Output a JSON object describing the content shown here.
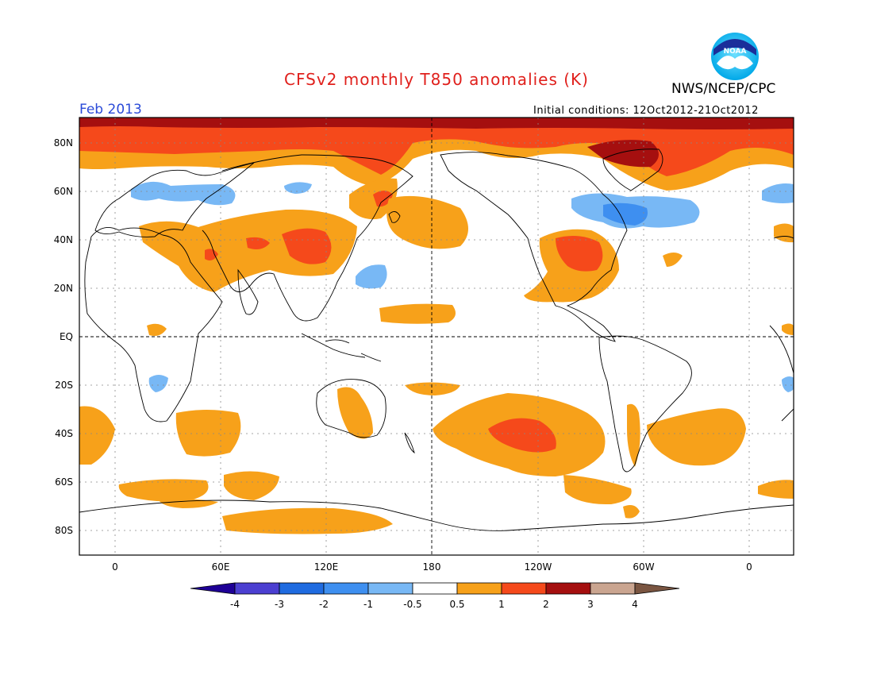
{
  "title": "CFSv2 monthly T850 anomalies (K)",
  "organization": "NWS/NCEP/CPC",
  "month_label": "Feb 2013",
  "initial_conditions": "Initial conditions: 12Oct2012-21Oct2012",
  "logo_text": "NOAA",
  "y_ticks": [
    "80N",
    "60N",
    "40N",
    "20N",
    "EQ",
    "20S",
    "40S",
    "60S",
    "80S"
  ],
  "x_ticks": [
    "0",
    "60E",
    "120E",
    "180",
    "120W",
    "60W",
    "0"
  ],
  "colorbar": {
    "labels": [
      "-4",
      "-3",
      "-2",
      "-1",
      "-0.5",
      "0.5",
      "1",
      "2",
      "3",
      "4"
    ],
    "colors": [
      "#1e0096",
      "#4b3fd1",
      "#1f6be0",
      "#3e8ff0",
      "#78b8f5",
      "#ffffff",
      "#f7a11a",
      "#f5491b",
      "#a50f0f",
      "#caa590",
      "#7a5541"
    ]
  },
  "anomaly_colors": {
    "warm1": "#f7a11a",
    "warm2": "#f5491b",
    "warm3": "#a50f0f",
    "cool1": "#78b8f5",
    "cool2": "#3e8ff0"
  }
}
